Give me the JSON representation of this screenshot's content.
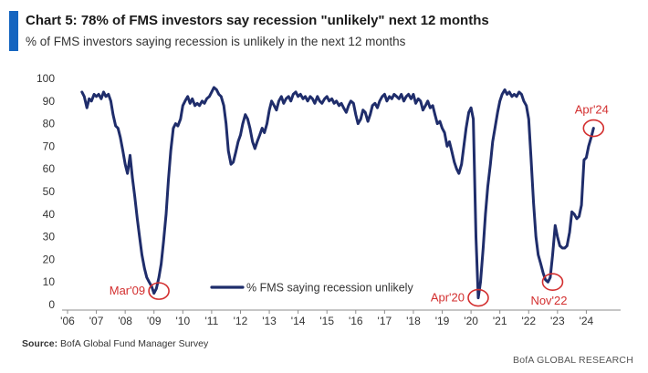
{
  "chart_data": {
    "type": "line",
    "title": "Chart 5: 78% of FMS investors say recession \"unlikely\" next 12 months",
    "subtitle": "% of FMS investors saying recession is unlikely in the next 12 months",
    "xlabel": "",
    "ylabel": "",
    "xlim": [
      2006.0,
      2025.0
    ],
    "ylim": [
      0,
      100
    ],
    "yticks": [
      0,
      10,
      20,
      30,
      40,
      50,
      60,
      70,
      80,
      90,
      100
    ],
    "xticks": [
      2006,
      2007,
      2008,
      2009,
      2010,
      2011,
      2012,
      2013,
      2014,
      2015,
      2016,
      2017,
      2018,
      2019,
      2020,
      2021,
      2022,
      2023,
      2024
    ],
    "xtick_labels": [
      "'06",
      "'07",
      "'08",
      "'09",
      "'10",
      "'11",
      "'12",
      "'13",
      "'14",
      "'15",
      "'16",
      "'17",
      "'18",
      "'19",
      "'20",
      "'21",
      "'22",
      "'23",
      "'24"
    ],
    "grid": false,
    "legend": {
      "position": "bottom-center",
      "entries": [
        "% FMS saying recession unlikely"
      ]
    },
    "series": [
      {
        "name": "% FMS saying recession unlikely",
        "color": "#1f2d6b",
        "points": [
          [
            2006.5,
            94
          ],
          [
            2006.58,
            92
          ],
          [
            2006.67,
            87
          ],
          [
            2006.75,
            91
          ],
          [
            2006.83,
            90
          ],
          [
            2006.92,
            93
          ],
          [
            2007.0,
            92
          ],
          [
            2007.08,
            93
          ],
          [
            2007.17,
            91
          ],
          [
            2007.25,
            94
          ],
          [
            2007.33,
            92
          ],
          [
            2007.42,
            93
          ],
          [
            2007.5,
            90
          ],
          [
            2007.58,
            84
          ],
          [
            2007.67,
            79
          ],
          [
            2007.75,
            78
          ],
          [
            2007.83,
            74
          ],
          [
            2007.92,
            68
          ],
          [
            2008.0,
            62
          ],
          [
            2008.08,
            58
          ],
          [
            2008.17,
            66
          ],
          [
            2008.25,
            56
          ],
          [
            2008.33,
            48
          ],
          [
            2008.42,
            38
          ],
          [
            2008.5,
            30
          ],
          [
            2008.58,
            22
          ],
          [
            2008.67,
            16
          ],
          [
            2008.75,
            12
          ],
          [
            2008.83,
            10
          ],
          [
            2008.92,
            8
          ],
          [
            2009.0,
            5
          ],
          [
            2009.08,
            7
          ],
          [
            2009.17,
            12
          ],
          [
            2009.25,
            18
          ],
          [
            2009.33,
            28
          ],
          [
            2009.42,
            40
          ],
          [
            2009.5,
            55
          ],
          [
            2009.58,
            68
          ],
          [
            2009.67,
            78
          ],
          [
            2009.75,
            80
          ],
          [
            2009.83,
            79
          ],
          [
            2009.92,
            82
          ],
          [
            2010.0,
            88
          ],
          [
            2010.08,
            90
          ],
          [
            2010.17,
            92
          ],
          [
            2010.25,
            89
          ],
          [
            2010.33,
            91
          ],
          [
            2010.42,
            88
          ],
          [
            2010.5,
            89
          ],
          [
            2010.58,
            88
          ],
          [
            2010.67,
            90
          ],
          [
            2010.75,
            89
          ],
          [
            2010.83,
            91
          ],
          [
            2010.92,
            92
          ],
          [
            2011.0,
            94
          ],
          [
            2011.08,
            96
          ],
          [
            2011.17,
            95
          ],
          [
            2011.25,
            93
          ],
          [
            2011.33,
            92
          ],
          [
            2011.42,
            88
          ],
          [
            2011.5,
            80
          ],
          [
            2011.58,
            68
          ],
          [
            2011.67,
            62
          ],
          [
            2011.75,
            63
          ],
          [
            2011.83,
            67
          ],
          [
            2011.92,
            72
          ],
          [
            2012.0,
            75
          ],
          [
            2012.08,
            80
          ],
          [
            2012.17,
            84
          ],
          [
            2012.25,
            82
          ],
          [
            2012.33,
            78
          ],
          [
            2012.42,
            72
          ],
          [
            2012.5,
            69
          ],
          [
            2012.58,
            72
          ],
          [
            2012.67,
            75
          ],
          [
            2012.75,
            78
          ],
          [
            2012.83,
            76
          ],
          [
            2012.92,
            80
          ],
          [
            2013.0,
            86
          ],
          [
            2013.08,
            90
          ],
          [
            2013.17,
            88
          ],
          [
            2013.25,
            86
          ],
          [
            2013.33,
            90
          ],
          [
            2013.42,
            92
          ],
          [
            2013.5,
            89
          ],
          [
            2013.58,
            91
          ],
          [
            2013.67,
            92
          ],
          [
            2013.75,
            90
          ],
          [
            2013.83,
            93
          ],
          [
            2013.92,
            94
          ],
          [
            2014.0,
            92
          ],
          [
            2014.08,
            93
          ],
          [
            2014.17,
            91
          ],
          [
            2014.25,
            92
          ],
          [
            2014.33,
            90
          ],
          [
            2014.42,
            92
          ],
          [
            2014.5,
            91
          ],
          [
            2014.58,
            89
          ],
          [
            2014.67,
            92
          ],
          [
            2014.75,
            90
          ],
          [
            2014.83,
            89
          ],
          [
            2014.92,
            91
          ],
          [
            2015.0,
            92
          ],
          [
            2015.08,
            90
          ],
          [
            2015.17,
            91
          ],
          [
            2015.25,
            89
          ],
          [
            2015.33,
            90
          ],
          [
            2015.42,
            88
          ],
          [
            2015.5,
            89
          ],
          [
            2015.58,
            87
          ],
          [
            2015.67,
            85
          ],
          [
            2015.75,
            88
          ],
          [
            2015.83,
            90
          ],
          [
            2015.92,
            89
          ],
          [
            2016.0,
            84
          ],
          [
            2016.08,
            80
          ],
          [
            2016.17,
            82
          ],
          [
            2016.25,
            86
          ],
          [
            2016.33,
            85
          ],
          [
            2016.42,
            81
          ],
          [
            2016.5,
            84
          ],
          [
            2016.58,
            88
          ],
          [
            2016.67,
            89
          ],
          [
            2016.75,
            87
          ],
          [
            2016.83,
            90
          ],
          [
            2016.92,
            92
          ],
          [
            2017.0,
            93
          ],
          [
            2017.08,
            90
          ],
          [
            2017.17,
            92
          ],
          [
            2017.25,
            91
          ],
          [
            2017.33,
            93
          ],
          [
            2017.42,
            92
          ],
          [
            2017.5,
            91
          ],
          [
            2017.58,
            93
          ],
          [
            2017.67,
            90
          ],
          [
            2017.75,
            92
          ],
          [
            2017.83,
            93
          ],
          [
            2017.92,
            91
          ],
          [
            2018.0,
            93
          ],
          [
            2018.08,
            89
          ],
          [
            2018.17,
            91
          ],
          [
            2018.25,
            90
          ],
          [
            2018.33,
            86
          ],
          [
            2018.42,
            88
          ],
          [
            2018.5,
            90
          ],
          [
            2018.58,
            87
          ],
          [
            2018.67,
            88
          ],
          [
            2018.75,
            84
          ],
          [
            2018.83,
            80
          ],
          [
            2018.92,
            81
          ],
          [
            2019.0,
            78
          ],
          [
            2019.08,
            76
          ],
          [
            2019.17,
            70
          ],
          [
            2019.25,
            72
          ],
          [
            2019.33,
            68
          ],
          [
            2019.42,
            63
          ],
          [
            2019.5,
            60
          ],
          [
            2019.58,
            58
          ],
          [
            2019.67,
            62
          ],
          [
            2019.75,
            70
          ],
          [
            2019.83,
            78
          ],
          [
            2019.92,
            85
          ],
          [
            2020.0,
            87
          ],
          [
            2020.08,
            82
          ],
          [
            2020.17,
            30
          ],
          [
            2020.25,
            3
          ],
          [
            2020.33,
            10
          ],
          [
            2020.42,
            25
          ],
          [
            2020.5,
            40
          ],
          [
            2020.58,
            52
          ],
          [
            2020.67,
            62
          ],
          [
            2020.75,
            72
          ],
          [
            2020.83,
            78
          ],
          [
            2020.92,
            85
          ],
          [
            2021.0,
            90
          ],
          [
            2021.08,
            93
          ],
          [
            2021.17,
            95
          ],
          [
            2021.25,
            93
          ],
          [
            2021.33,
            94
          ],
          [
            2021.42,
            92
          ],
          [
            2021.5,
            93
          ],
          [
            2021.58,
            92
          ],
          [
            2021.67,
            94
          ],
          [
            2021.75,
            93
          ],
          [
            2021.83,
            90
          ],
          [
            2021.92,
            88
          ],
          [
            2022.0,
            82
          ],
          [
            2022.08,
            65
          ],
          [
            2022.17,
            45
          ],
          [
            2022.25,
            30
          ],
          [
            2022.33,
            22
          ],
          [
            2022.42,
            18
          ],
          [
            2022.5,
            14
          ],
          [
            2022.58,
            11
          ],
          [
            2022.67,
            10
          ],
          [
            2022.75,
            12
          ],
          [
            2022.83,
            22
          ],
          [
            2022.92,
            35
          ],
          [
            2023.0,
            30
          ],
          [
            2023.08,
            26
          ],
          [
            2023.17,
            25
          ],
          [
            2023.25,
            25
          ],
          [
            2023.33,
            26
          ],
          [
            2023.42,
            32
          ],
          [
            2023.5,
            41
          ],
          [
            2023.58,
            40
          ],
          [
            2023.67,
            38
          ],
          [
            2023.75,
            39
          ],
          [
            2023.83,
            44
          ],
          [
            2023.92,
            64
          ],
          [
            2024.0,
            65
          ],
          [
            2024.08,
            70
          ],
          [
            2024.17,
            74
          ],
          [
            2024.25,
            78
          ]
        ]
      }
    ],
    "annotations": [
      {
        "label": "Mar'09",
        "x": 2009.17,
        "y": 6,
        "label_side": "left"
      },
      {
        "label": "Apr'20",
        "x": 2020.25,
        "y": 3,
        "label_side": "left"
      },
      {
        "label": "Nov'22",
        "x": 2022.83,
        "y": 10,
        "label_side": "below"
      },
      {
        "label": "Apr'24",
        "x": 2024.25,
        "y": 78,
        "label_side": "above"
      }
    ],
    "source_prefix": "Source:",
    "source_text": "BofA Global Fund Manager Survey",
    "brand": "BofA GLOBAL RESEARCH",
    "colors": {
      "accent": "#1565c0",
      "line": "#1f2d6b",
      "annotation": "#d32f2f",
      "axis": "#8c8c8c"
    }
  }
}
